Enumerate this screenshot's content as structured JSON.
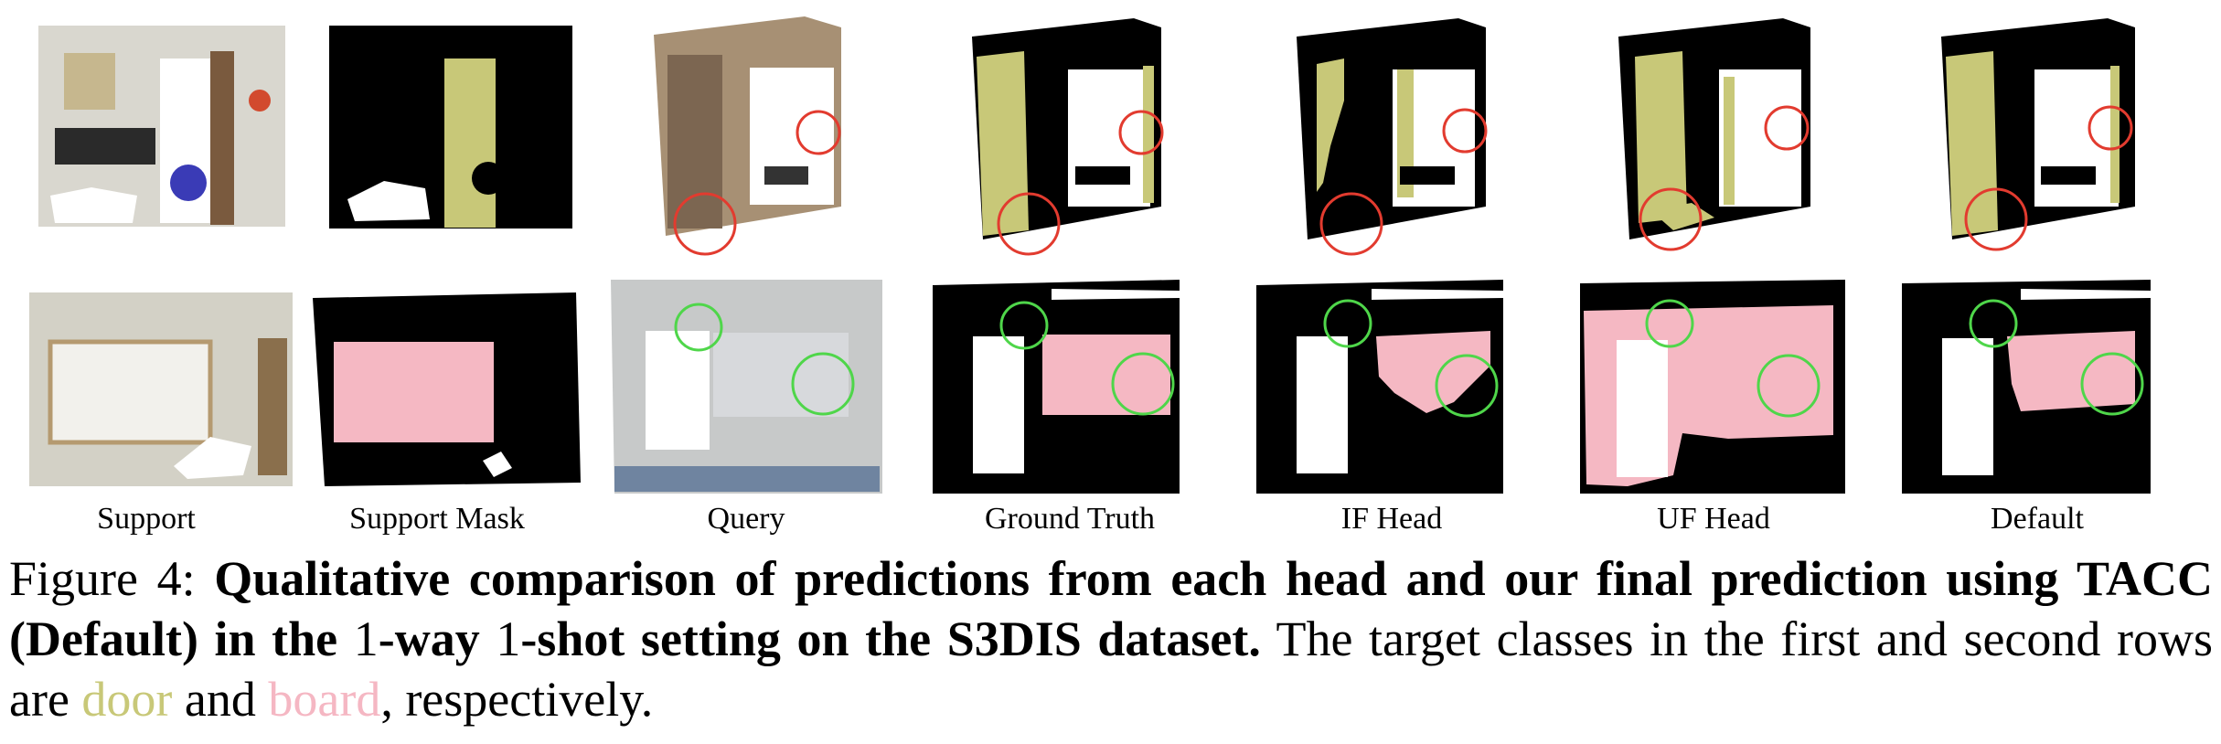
{
  "figure": {
    "column_labels": [
      "Support",
      "Support Mask",
      "Query",
      "Ground Truth",
      "IF Head",
      "UF Head",
      "Default"
    ],
    "rows": [
      {
        "target_class": "door",
        "target_color": "#c8c878",
        "marker_color": "#e23b2f"
      },
      {
        "target_class": "board",
        "target_color": "#f5b8c3",
        "marker_color": "#4fd64a"
      }
    ]
  },
  "caption": {
    "prefix": "Figure 4: ",
    "bold_a": "Qualitative comparison of predictions from each head and our final prediction using TACC (Default) in the ",
    "num1": "1",
    "bold_b": "-way ",
    "num2": "1",
    "bold_c": "-shot setting on the S3DIS dataset.",
    "text_a": " The target classes in the first and second rows are ",
    "class1": "door",
    "text_b": " and ",
    "class2": "board",
    "text_c": ", respectively."
  }
}
